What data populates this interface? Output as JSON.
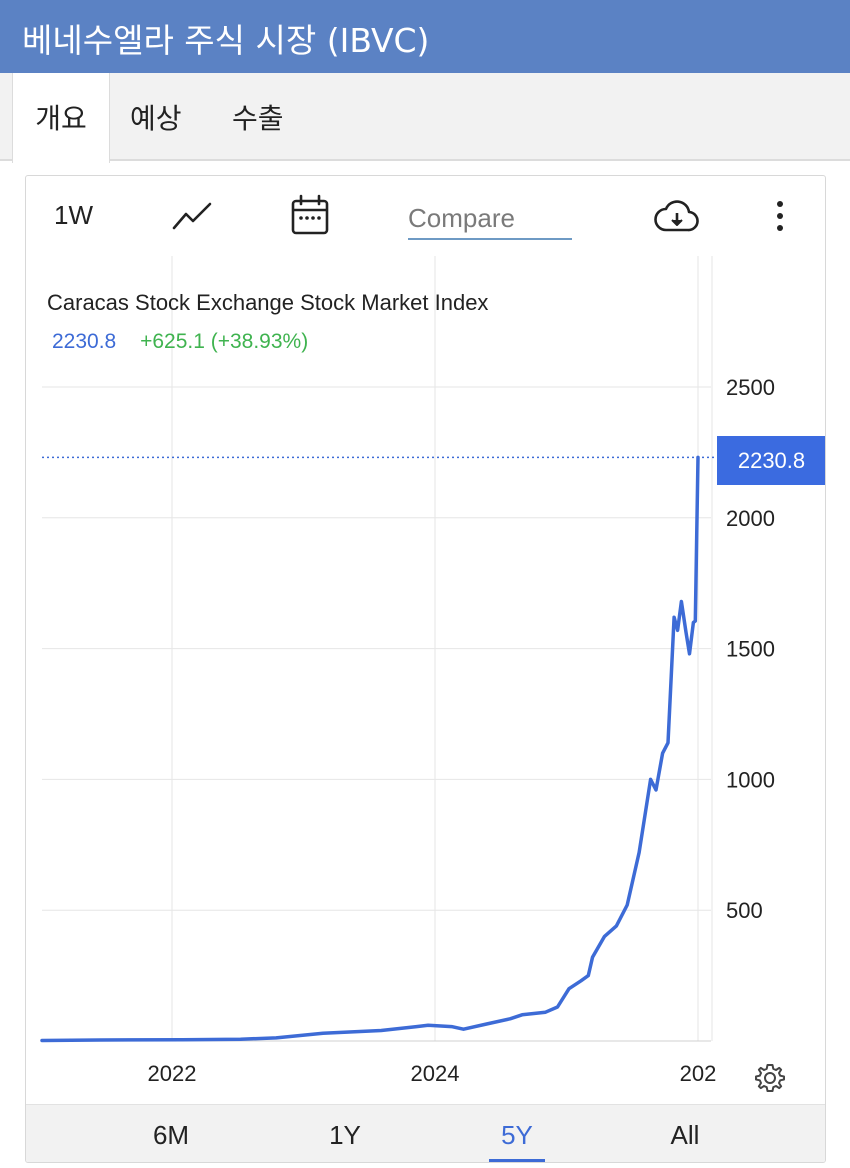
{
  "header": {
    "title": "베네수엘라 주식 시장 (IBVC)"
  },
  "tabs": [
    {
      "label": "개요",
      "active": true
    },
    {
      "label": "예상",
      "active": false
    },
    {
      "label": "수출",
      "active": false
    }
  ],
  "toolbar": {
    "period": "1W",
    "compare_placeholder": "Compare",
    "icons": [
      "line-chart-icon",
      "calendar-icon",
      "cloud-download-icon",
      "more-vert-icon"
    ]
  },
  "instrument": {
    "name": "Caracas Stock Exchange Stock Market Index",
    "last": "2230.8",
    "change": "+625.1 (+38.93%)"
  },
  "price_tag": "2230.8",
  "colors": {
    "header": "#5b82c4",
    "line": "#3d6bd6",
    "positive": "#3fb34f",
    "price_tag": "#3b6be0"
  },
  "range_buttons": [
    {
      "label": "6M",
      "active": false
    },
    {
      "label": "1Y",
      "active": false
    },
    {
      "label": "5Y",
      "active": true
    },
    {
      "label": "All",
      "active": false
    }
  ],
  "chart_data": {
    "type": "line",
    "title": "Caracas Stock Exchange Stock Market Index",
    "xlabel": "",
    "ylabel": "",
    "x_ticks": [
      "2022",
      "2024",
      "202"
    ],
    "y_ticks": [
      500,
      1000,
      1500,
      2000,
      2500
    ],
    "ylim": [
      0,
      2700
    ],
    "grid": true,
    "last_value": 2230.8,
    "series": [
      {
        "points": [
          [
            "2021-01",
            2
          ],
          [
            "2021-06",
            4
          ],
          [
            "2022-01",
            5
          ],
          [
            "2022-06",
            7
          ],
          [
            "2022-09",
            12
          ],
          [
            "2023-01",
            30
          ],
          [
            "2023-06",
            40
          ],
          [
            "2023-09",
            55
          ],
          [
            "2023-10",
            60
          ],
          [
            "2023-12",
            55
          ],
          [
            "2024-01",
            45
          ],
          [
            "2024-03",
            65
          ],
          [
            "2024-05",
            85
          ],
          [
            "2024-06",
            100
          ],
          [
            "2024-08",
            110
          ],
          [
            "2024-09",
            130
          ],
          [
            "2024-10",
            200
          ],
          [
            "2024-11",
            230
          ],
          [
            "2024-11-20",
            250
          ],
          [
            "2024-12",
            320
          ],
          [
            "2025-01",
            400
          ],
          [
            "2025-02",
            440
          ],
          [
            "2025-03",
            520
          ],
          [
            "2025-04",
            720
          ],
          [
            "2025-05",
            1000
          ],
          [
            "2025-05-15",
            960
          ],
          [
            "2025-06",
            1100
          ],
          [
            "2025-06-15",
            1140
          ],
          [
            "2025-07",
            1620
          ],
          [
            "2025-07-10",
            1570
          ],
          [
            "2025-07-20",
            1680
          ],
          [
            "2025-08",
            1560
          ],
          [
            "2025-08-10",
            1480
          ],
          [
            "2025-08-20",
            1600
          ],
          [
            "2025-08-25",
            1605
          ],
          [
            "2025-09",
            2230.8
          ]
        ]
      }
    ]
  }
}
